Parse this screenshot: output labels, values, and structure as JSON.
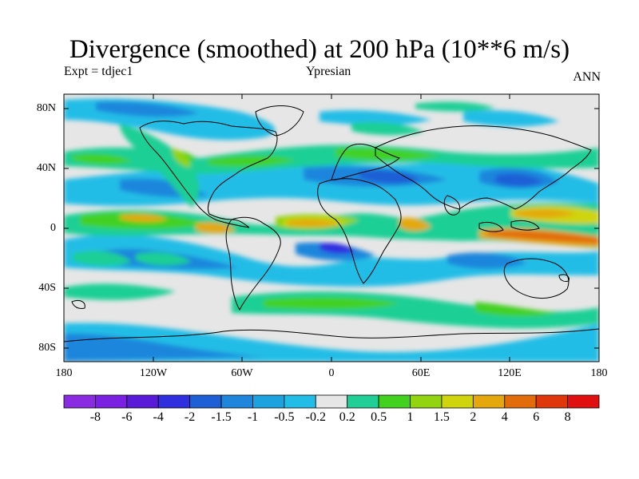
{
  "title": "Divergence (smoothed) at 200 hPa (10**6 m/s)",
  "left_subtitle": "Expt = tdjec1",
  "center_subtitle": "Ypresian",
  "right_subtitle": "ANN",
  "lat_ticks": [
    "80N",
    "40N",
    "0",
    "40S",
    "80S"
  ],
  "lon_ticks": [
    "180",
    "120W",
    "60W",
    "0",
    "60E",
    "120E",
    "180"
  ],
  "colorbar": {
    "labels": [
      "-8",
      "-6",
      "-4",
      "-2",
      "-1.5",
      "-1",
      "-0.5",
      "-0.2",
      "0.2",
      "0.5",
      "1",
      "1.5",
      "2",
      "4",
      "6",
      "8"
    ],
    "colors": [
      "#8a2be2",
      "#7a20e0",
      "#5a1bd8",
      "#2f2fe0",
      "#1e5fd6",
      "#1f86dc",
      "#1ca2df",
      "#22bde6",
      "#e6e6e6",
      "#1fcf95",
      "#43d120",
      "#92d40f",
      "#cfd40c",
      "#e4a80c",
      "#e26b0a",
      "#e0360c",
      "#e01010"
    ]
  },
  "chart_data": {
    "type": "heatmap",
    "title": "Divergence (smoothed) at 200 hPa (10**6 m/s)",
    "xlabel": "",
    "ylabel": "",
    "x_range": [
      -180,
      180
    ],
    "y_range": [
      -90,
      90
    ],
    "legend_position": "bottom",
    "contour_levels": [
      -8,
      -6,
      -4,
      -2,
      -1.5,
      -1,
      -0.5,
      -0.2,
      0.2,
      0.5,
      1,
      1.5,
      2,
      4,
      6,
      8
    ]
  }
}
